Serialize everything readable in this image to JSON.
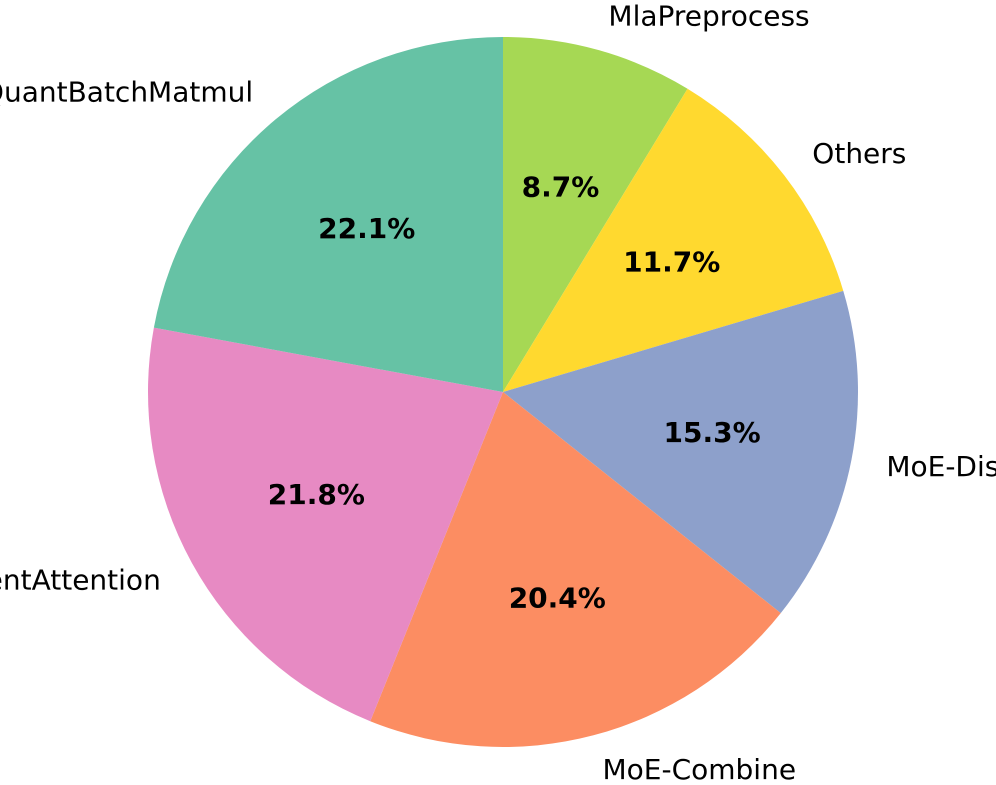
{
  "chart_data": {
    "type": "pie",
    "start_angle_deg": 90,
    "direction": "clockwise",
    "slices": [
      {
        "label": "MlaPreprocess",
        "value": 8.7,
        "pct_label": "8.7%",
        "color": "#a6d854"
      },
      {
        "label": "Others",
        "value": 11.7,
        "pct_label": "11.7%",
        "color": "#ffd92f"
      },
      {
        "label": "MoE-Dispatch",
        "value": 15.3,
        "pct_label": "15.3%",
        "color": "#8da0cb"
      },
      {
        "label": "MoE-Combine",
        "value": 20.4,
        "pct_label": "20.4%",
        "color": "#fc8d62"
      },
      {
        "label": "MultiLatentAttention",
        "value": 21.8,
        "pct_label": "21.8%",
        "color": "#e78ac3"
      },
      {
        "label": "QuantBatchMatmul",
        "value": 22.1,
        "pct_label": "22.1%",
        "color": "#66c2a5"
      }
    ]
  }
}
